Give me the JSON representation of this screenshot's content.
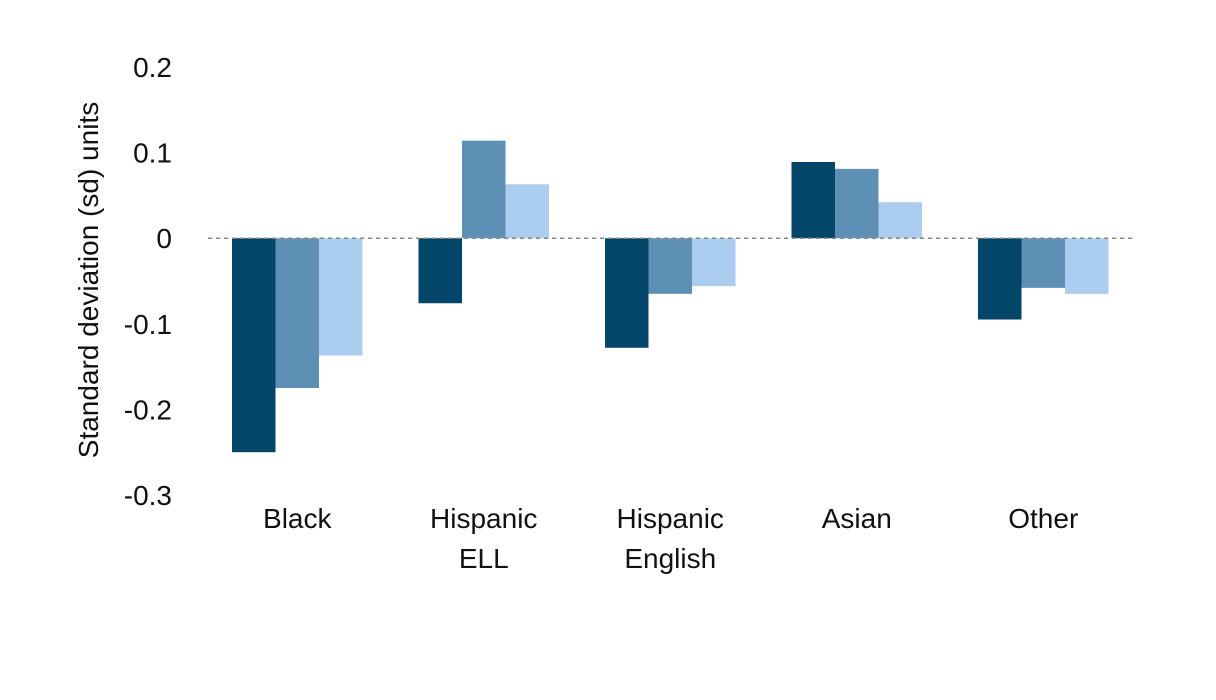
{
  "chart_data": {
    "type": "bar",
    "title": "",
    "xlabel": "",
    "ylabel": "Standard deviation (sd) units",
    "ylim": [
      -0.3,
      0.2
    ],
    "yticks": [
      {
        "value": 0.2,
        "label": "0.2"
      },
      {
        "value": 0.1,
        "label": "0.1"
      },
      {
        "value": 0,
        "label": "0"
      },
      {
        "value": -0.1,
        "label": "-0.1"
      },
      {
        "value": -0.2,
        "label": "-0.2"
      },
      {
        "value": -0.3,
        "label": "-0.3"
      }
    ],
    "categories": [
      [
        "Black"
      ],
      [
        "Hispanic",
        "ELL"
      ],
      [
        "Hispanic",
        "English"
      ],
      [
        "Asian"
      ],
      [
        "Other"
      ]
    ],
    "series": [
      {
        "color": "#03466a",
        "values": [
          -0.25,
          -0.076,
          -0.128,
          0.089,
          -0.095
        ]
      },
      {
        "color": "#5e8fb4",
        "values": [
          -0.175,
          0.114,
          -0.065,
          0.081,
          -0.058
        ]
      },
      {
        "color": "#aacdf0",
        "values": [
          -0.137,
          0.063,
          -0.056,
          0.042,
          -0.065
        ]
      }
    ],
    "zero_line": {
      "style": "dotted",
      "color": "#888888"
    },
    "grid": false,
    "legend": "none"
  }
}
